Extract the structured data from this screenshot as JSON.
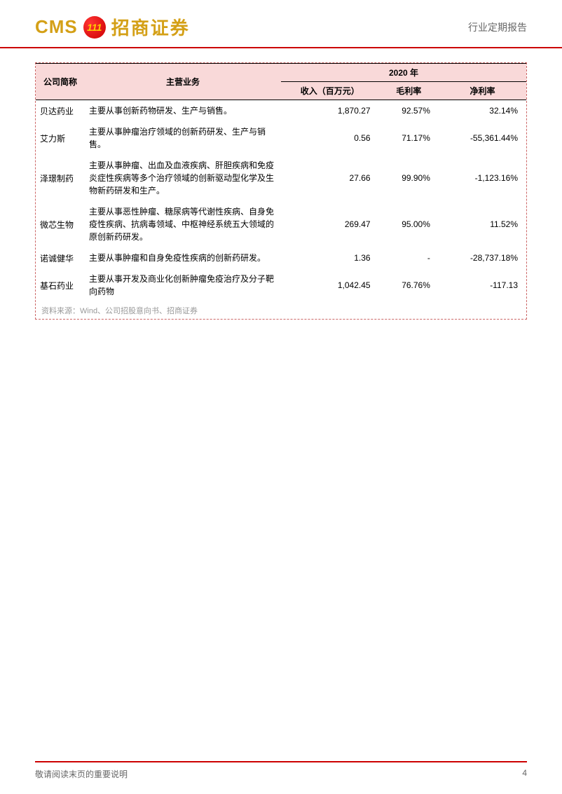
{
  "header": {
    "logo_cms": "CMS",
    "logo_badge": "111",
    "logo_text": "招商证券",
    "report_type": "行业定期报告"
  },
  "table": {
    "columns": {
      "company": "公司简称",
      "business": "主营业务",
      "year": "2020 年",
      "revenue": "收入（百万元）",
      "gross_margin": "毛利率",
      "net_margin": "净利率"
    },
    "rows": [
      {
        "company": "贝达药业",
        "business": "主要从事创新药物研发、生产与销售。",
        "revenue": "1,870.27",
        "gross_margin": "92.57%",
        "net_margin": "32.14%"
      },
      {
        "company": "艾力斯",
        "business": "主要从事肿瘤治疗领域的创新药研发、生产与销售。",
        "revenue": "0.56",
        "gross_margin": "71.17%",
        "net_margin": "-55,361.44%"
      },
      {
        "company": "泽璟制药",
        "business": "主要从事肿瘤、出血及血液疾病、肝胆疾病和免疫炎症性疾病等多个治疗领域的创新驱动型化学及生物新药研发和生产。",
        "revenue": "27.66",
        "gross_margin": "99.90%",
        "net_margin": "-1,123.16%"
      },
      {
        "company": "微芯生物",
        "business": "主要从事恶性肿瘤、糖尿病等代谢性疾病、自身免疫性疾病、抗病毒领域、中枢神经系统五大领域的原创新药研发。",
        "revenue": "269.47",
        "gross_margin": "95.00%",
        "net_margin": "11.52%"
      },
      {
        "company": "诺诚健华",
        "business": "主要从事肿瘤和自身免疫性疾病的创新药研发。",
        "revenue": "1.36",
        "gross_margin": "-",
        "net_margin": "-28,737.18%"
      },
      {
        "company": "基石药业",
        "business": "主要从事开发及商业化创新肿瘤免疫治疗及分子靶向药物",
        "revenue": "1,042.45",
        "gross_margin": "76.76%",
        "net_margin": "-117.13"
      }
    ],
    "source_note": "资料来源：Wind、公司招股意向书、招商证券"
  },
  "footer": {
    "disclaimer": "敬请阅读末页的重要说明",
    "page_number": "4"
  },
  "styling": {
    "header_bg": "#f9d9d9",
    "border_dashed": "#cc6666",
    "accent_line": "#cc0000",
    "logo_color": "#d4a017",
    "text_muted": "#999999",
    "footer_text": "#666666"
  }
}
